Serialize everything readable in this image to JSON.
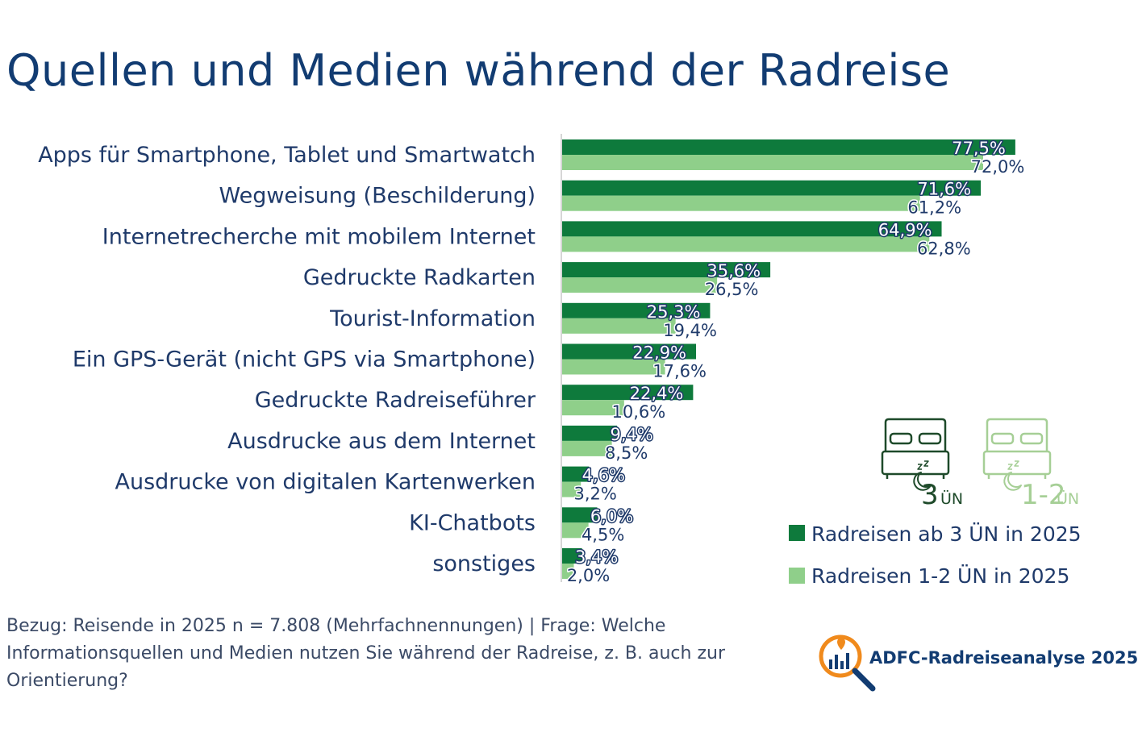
{
  "title": "Quellen und Medien während der Radreise",
  "chart_data": {
    "type": "bar",
    "orientation": "horizontal",
    "title": "Quellen und Medien während der Radreise",
    "categories": [
      "Apps für Smartphone, Tablet und Smartwatch",
      "Wegweisung (Beschilderung)",
      "Internetrecherche mit mobilem Internet",
      "Gedruckte Radkarten",
      "Tourist-Information",
      "Ein GPS-Gerät (nicht GPS via Smartphone)",
      "Gedruckte Radreiseführer",
      "Ausdrucke aus dem Internet",
      "Ausdrucke von digitalen Kartenwerken",
      "KI-Chatbots",
      "sonstiges"
    ],
    "series": [
      {
        "name": "Radreisen ab 3 ÜN in 2025",
        "color": "#0e7a3c",
        "values": [
          77.5,
          71.6,
          64.9,
          35.6,
          25.3,
          22.9,
          22.4,
          9.4,
          4.6,
          6.0,
          3.4
        ],
        "labels": [
          "77,5%",
          "71,6%",
          "64,9%",
          "35,6%",
          "25,3%",
          "22,9%",
          "22,4%",
          "9,4%",
          "4,6%",
          "6,0%",
          "3,4%"
        ]
      },
      {
        "name": "Radreisen 1-2 ÜN in 2025",
        "color": "#8fcf8a",
        "values": [
          72.0,
          61.2,
          62.8,
          26.5,
          19.4,
          17.6,
          10.6,
          8.5,
          3.2,
          4.5,
          2.0
        ],
        "labels": [
          "72,0%",
          "61,2%",
          "62,8%",
          "26,5%",
          "19,4%",
          "17,6%",
          "10,6%",
          "8,5%",
          "3,2%",
          "4,5%",
          "2,0%"
        ]
      }
    ],
    "xlim": [
      0,
      100
    ],
    "unit": "%",
    "grid": false,
    "legend_position": "bottom-right"
  },
  "icons": {
    "dark_label_num": "3",
    "dark_label_unit": "ÜN",
    "light_label_num": "1-2",
    "light_label_unit": "ÜN"
  },
  "footnote": "Bezug: Reisende in 2025 n = 7.808 (Mehrfachnennungen) | Frage: Welche Informationsquellen und Medien nutzen Sie während der Radreise, z. B. auch zur Orientierung?",
  "brand": "ADFC-Radreiseanalyse 2025",
  "colors": {
    "title": "#123c72",
    "dark_green": "#0e7a3c",
    "light_green": "#8fcf8a",
    "brand_orange": "#f08a1c",
    "brand_blue": "#123c72"
  }
}
